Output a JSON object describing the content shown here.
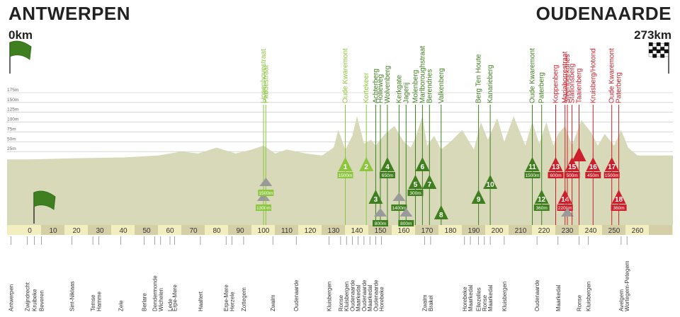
{
  "header": {
    "start_city": "ANTWERPEN",
    "start_km": "0km",
    "finish_city": "OUDENAARDE",
    "finish_km": "273km"
  },
  "colors": {
    "flat": "#8cc63f",
    "climb": "#3f7f1f",
    "final": "#cc1f2b",
    "terrain": "#d7d9b9",
    "axis_band": "#f3eec0"
  },
  "chart_data": {
    "type": "area",
    "title": "",
    "xlabel": "",
    "ylabel": "",
    "xlim": [
      0,
      260
    ],
    "ylim": [
      0,
      175
    ],
    "yticks": [
      "175m",
      "150m",
      "125m",
      "100m",
      "75m",
      "50m",
      "25m"
    ],
    "ytick_values": [
      175,
      150,
      125,
      100,
      75,
      50,
      25
    ],
    "xticks": [
      0,
      10,
      20,
      30,
      40,
      50,
      60,
      70,
      80,
      90,
      100,
      110,
      120,
      130,
      140,
      150,
      160,
      170,
      180,
      190,
      200,
      210,
      220,
      230,
      240,
      250,
      260
    ],
    "elevation_profile": {
      "km": [
        -8,
        0,
        20,
        40,
        55,
        65,
        72,
        80,
        88,
        95,
        100,
        105,
        110,
        118,
        125,
        130,
        132,
        135,
        138,
        140,
        143,
        146,
        148,
        152,
        156,
        160,
        163,
        165,
        168,
        170,
        173,
        176,
        180,
        185,
        190,
        193,
        196,
        200,
        203,
        207,
        212,
        215,
        218,
        221,
        224,
        226,
        229,
        232,
        236,
        240,
        243,
        246,
        250,
        253,
        256,
        260,
        268
      ],
      "elevation_m": [
        5,
        5,
        8,
        10,
        15,
        25,
        20,
        35,
        20,
        30,
        40,
        20,
        30,
        20,
        15,
        35,
        80,
        30,
        65,
        115,
        45,
        55,
        40,
        70,
        90,
        50,
        35,
        60,
        115,
        40,
        65,
        30,
        50,
        80,
        30,
        100,
        55,
        110,
        50,
        115,
        40,
        100,
        45,
        100,
        40,
        70,
        90,
        40,
        105,
        75,
        40,
        70,
        40,
        80,
        35,
        15,
        15
      ]
    },
    "climbs": [
      {
        "name": "Lippenhovestraat",
        "km": 100,
        "color": "flat",
        "kind": "cobble",
        "length": "1300m",
        "row": 3
      },
      {
        "name": "Paddestraat",
        "km": 101,
        "color": "flat",
        "kind": "cobble",
        "length": "1500m",
        "row": 2
      },
      {
        "name": "Oude Kwaremont",
        "km": 135,
        "color": "flat",
        "kind": "climb",
        "number": "1",
        "length": "1500m",
        "row": 1
      },
      {
        "name": "Kortekeer",
        "km": 144,
        "color": "flat",
        "kind": "climb",
        "number": "2",
        "row": 1
      },
      {
        "name": "Achterberg",
        "km": 148,
        "color": "climb",
        "kind": "climb",
        "number": "3",
        "row": 3
      },
      {
        "name": "Holleweg",
        "km": 150,
        "color": "climb",
        "kind": "cobble",
        "length": "800m",
        "row": 4
      },
      {
        "name": "Wolvenberg",
        "km": 153,
        "color": "climb",
        "kind": "climb",
        "number": "4",
        "length": "650m",
        "row": 1
      },
      {
        "name": "Kerkgate",
        "km": 158,
        "color": "climb",
        "kind": "cobble",
        "length": "1400m",
        "row": 3
      },
      {
        "name": "Jagerij",
        "km": 161,
        "color": "climb",
        "kind": "cobble",
        "length": "800m",
        "row": 4
      },
      {
        "name": "Molenberg",
        "km": 165,
        "color": "climb",
        "kind": "climb",
        "number": "5",
        "length": "300m",
        "row": 2
      },
      {
        "name": "Marlboroughstraat",
        "km": 168,
        "color": "climb",
        "kind": "climb",
        "number": "6",
        "row": 1
      },
      {
        "name": "Berendries",
        "km": 171,
        "color": "climb",
        "kind": "climb",
        "number": "7",
        "row": 2
      },
      {
        "name": "Valkenberg",
        "km": 176,
        "color": "climb",
        "kind": "climb",
        "number": "8",
        "row": 4
      },
      {
        "name": "Berg Ten Houte",
        "km": 192,
        "color": "climb",
        "kind": "climb",
        "number": "9",
        "row": 3
      },
      {
        "name": "Kanarieberg",
        "km": 197,
        "color": "climb",
        "kind": "climb",
        "number": "10",
        "row": 2
      },
      {
        "name": "Oude Kwaremont",
        "km": 215,
        "color": "climb",
        "kind": "climb",
        "number": "11",
        "length": "1500m",
        "row": 1
      },
      {
        "name": "Paterberg",
        "km": 219,
        "color": "climb",
        "kind": "climb",
        "number": "12",
        "length": "360m",
        "row": 3
      },
      {
        "name": "Koppenberg",
        "km": 225,
        "color": "final",
        "kind": "climb",
        "number": "13",
        "length": "600m",
        "row": 1
      },
      {
        "name": "Mariaborrestraat",
        "km": 229,
        "color": "final",
        "kind": "climb",
        "number": "14",
        "length": "2200m",
        "row": 3
      },
      {
        "name": "Steenbeekdries",
        "km": 230,
        "color": "final",
        "kind": "cobble",
        "row": 4
      },
      {
        "name": "Stationsberg",
        "km": 232,
        "color": "final",
        "kind": "climb",
        "number": "15",
        "length": "500m",
        "row": 1
      },
      {
        "name": "Taaienberg",
        "km": 235,
        "color": "final",
        "kind": "climb",
        "row": 0
      },
      {
        "name": "Kruisberg/Hotond",
        "km": 241,
        "color": "final",
        "kind": "climb",
        "number": "16",
        "length": "450m",
        "row": 1
      },
      {
        "name": "Oude Kwaremont",
        "km": 249,
        "color": "final",
        "kind": "climb",
        "number": "17",
        "length": "1500m",
        "row": 1
      },
      {
        "name": "Paterberg",
        "km": 252,
        "color": "final",
        "kind": "climb",
        "number": "18",
        "length": "360m",
        "row": 3
      }
    ],
    "towns": [
      {
        "name": "Antwerpen",
        "km": -8
      },
      {
        "name": "Zwijndrecht",
        "km": -1
      },
      {
        "name": "Kruibeke",
        "km": 2
      },
      {
        "name": "Beveren",
        "km": 5
      },
      {
        "name": "Sint-Niklaas",
        "km": 18
      },
      {
        "name": "Temse",
        "km": 27
      },
      {
        "name": "Hamme",
        "km": 29.5
      },
      {
        "name": "Zele",
        "km": 39
      },
      {
        "name": "Berlare",
        "km": 49
      },
      {
        "name": "Dendermonde",
        "km": 53.5
      },
      {
        "name": "Wichelen",
        "km": 56
      },
      {
        "name": "Lede",
        "km": 60
      },
      {
        "name": "Erpe-Mere",
        "km": 62
      },
      {
        "name": "Haaltert",
        "km": 73
      },
      {
        "name": "Erpe-Mere",
        "km": 84
      },
      {
        "name": "Herzele",
        "km": 86.5
      },
      {
        "name": "Zottegem",
        "km": 91.5
      },
      {
        "name": "Zwalm",
        "km": 104
      },
      {
        "name": "Oudenaarde",
        "km": 114
      },
      {
        "name": "Kluisbergen",
        "km": 128
      },
      {
        "name": "Ronse",
        "km": 133
      },
      {
        "name": "Kluisbergen",
        "km": 135.5
      },
      {
        "name": "Oudenaarde",
        "km": 138
      },
      {
        "name": "Maarkedal",
        "km": 140.5
      },
      {
        "name": "Oudenaarde",
        "km": 143
      },
      {
        "name": "Maarkedal",
        "km": 145.5
      },
      {
        "name": "Oudenaarde",
        "km": 148
      },
      {
        "name": "Horebeke",
        "km": 150.5
      },
      {
        "name": "Zwalm",
        "km": 169
      },
      {
        "name": "Brakel",
        "km": 171.5
      },
      {
        "name": "Horebeke",
        "km": 186
      },
      {
        "name": "Maarkedal",
        "km": 188.5
      },
      {
        "name": "Ellezelles",
        "km": 192
      },
      {
        "name": "Ronse",
        "km": 194.5
      },
      {
        "name": "Maarkedal",
        "km": 197
      },
      {
        "name": "Kluisbergen",
        "km": 203
      },
      {
        "name": "Oudenaarde",
        "km": 217
      },
      {
        "name": "Maarkedal",
        "km": 226
      },
      {
        "name": "Ronse",
        "km": 235
      },
      {
        "name": "Kluisbergen",
        "km": 239
      },
      {
        "name": "Avelgem",
        "km": 253
      },
      {
        "name": "Wortegem-Petegem",
        "km": 255.5
      }
    ]
  }
}
